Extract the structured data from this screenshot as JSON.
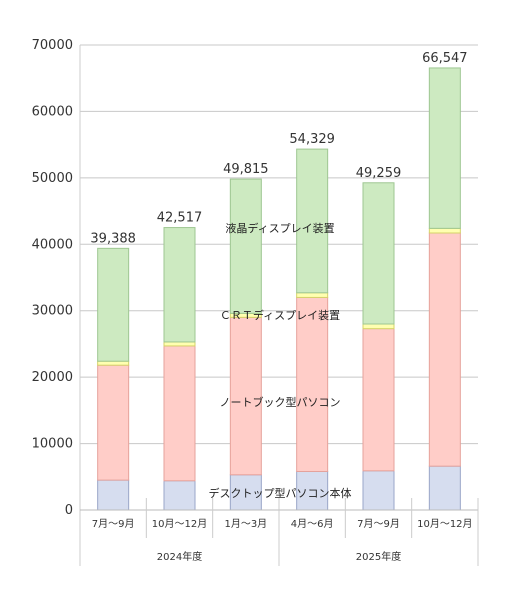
{
  "chart_data": {
    "type": "bar",
    "stacked": true,
    "categories": [
      "7月～9月",
      "10月～12月",
      "1月～3月",
      "4月～6月",
      "7月～9月",
      "10月～12月"
    ],
    "category_colors": [
      "#333333",
      "#333333",
      "#333333",
      "#333333",
      "#333333",
      "#e8403a"
    ],
    "groups": [
      {
        "label": "2024年度",
        "categories": [
          0,
          1,
          2
        ]
      },
      {
        "label": "2025年度",
        "categories": [
          3,
          4,
          5
        ]
      }
    ],
    "series": [
      {
        "name": "デスクトップ型パソコン本体",
        "color": "#d6ddef",
        "border": "#9aa6c8",
        "values": [
          4500,
          4400,
          5300,
          5800,
          5900,
          6600
        ]
      },
      {
        "name": "ノートブック型パソコン",
        "color": "#ffcdc8",
        "border": "#e6a29b",
        "values": [
          17300,
          20300,
          23700,
          26200,
          21400,
          35100
        ]
      },
      {
        "name": "ＣＲＴディスプレイ装置",
        "color": "#ffffb0",
        "border": "#d6d36a",
        "values": [
          600,
          600,
          600,
          700,
          700,
          700
        ]
      },
      {
        "name": "液晶ディスプレイ装置",
        "color": "#cdeac1",
        "border": "#9ec792",
        "values": [
          16988,
          17217,
          20215,
          21629,
          21259,
          24147
        ]
      }
    ],
    "totals": [
      "39,388",
      "42,517",
      "49,815",
      "54,329",
      "49,259",
      "66,547"
    ],
    "total_colors": [
      "#333333",
      "#333333",
      "#333333",
      "#333333",
      "#333333",
      "#e8403a"
    ],
    "ylim": [
      0,
      70000
    ],
    "yticks": [
      0,
      10000,
      20000,
      30000,
      40000,
      50000,
      60000,
      70000
    ],
    "grid": true,
    "legend": "inline labels on bars",
    "title": "",
    "xlabel": "",
    "ylabel": ""
  }
}
